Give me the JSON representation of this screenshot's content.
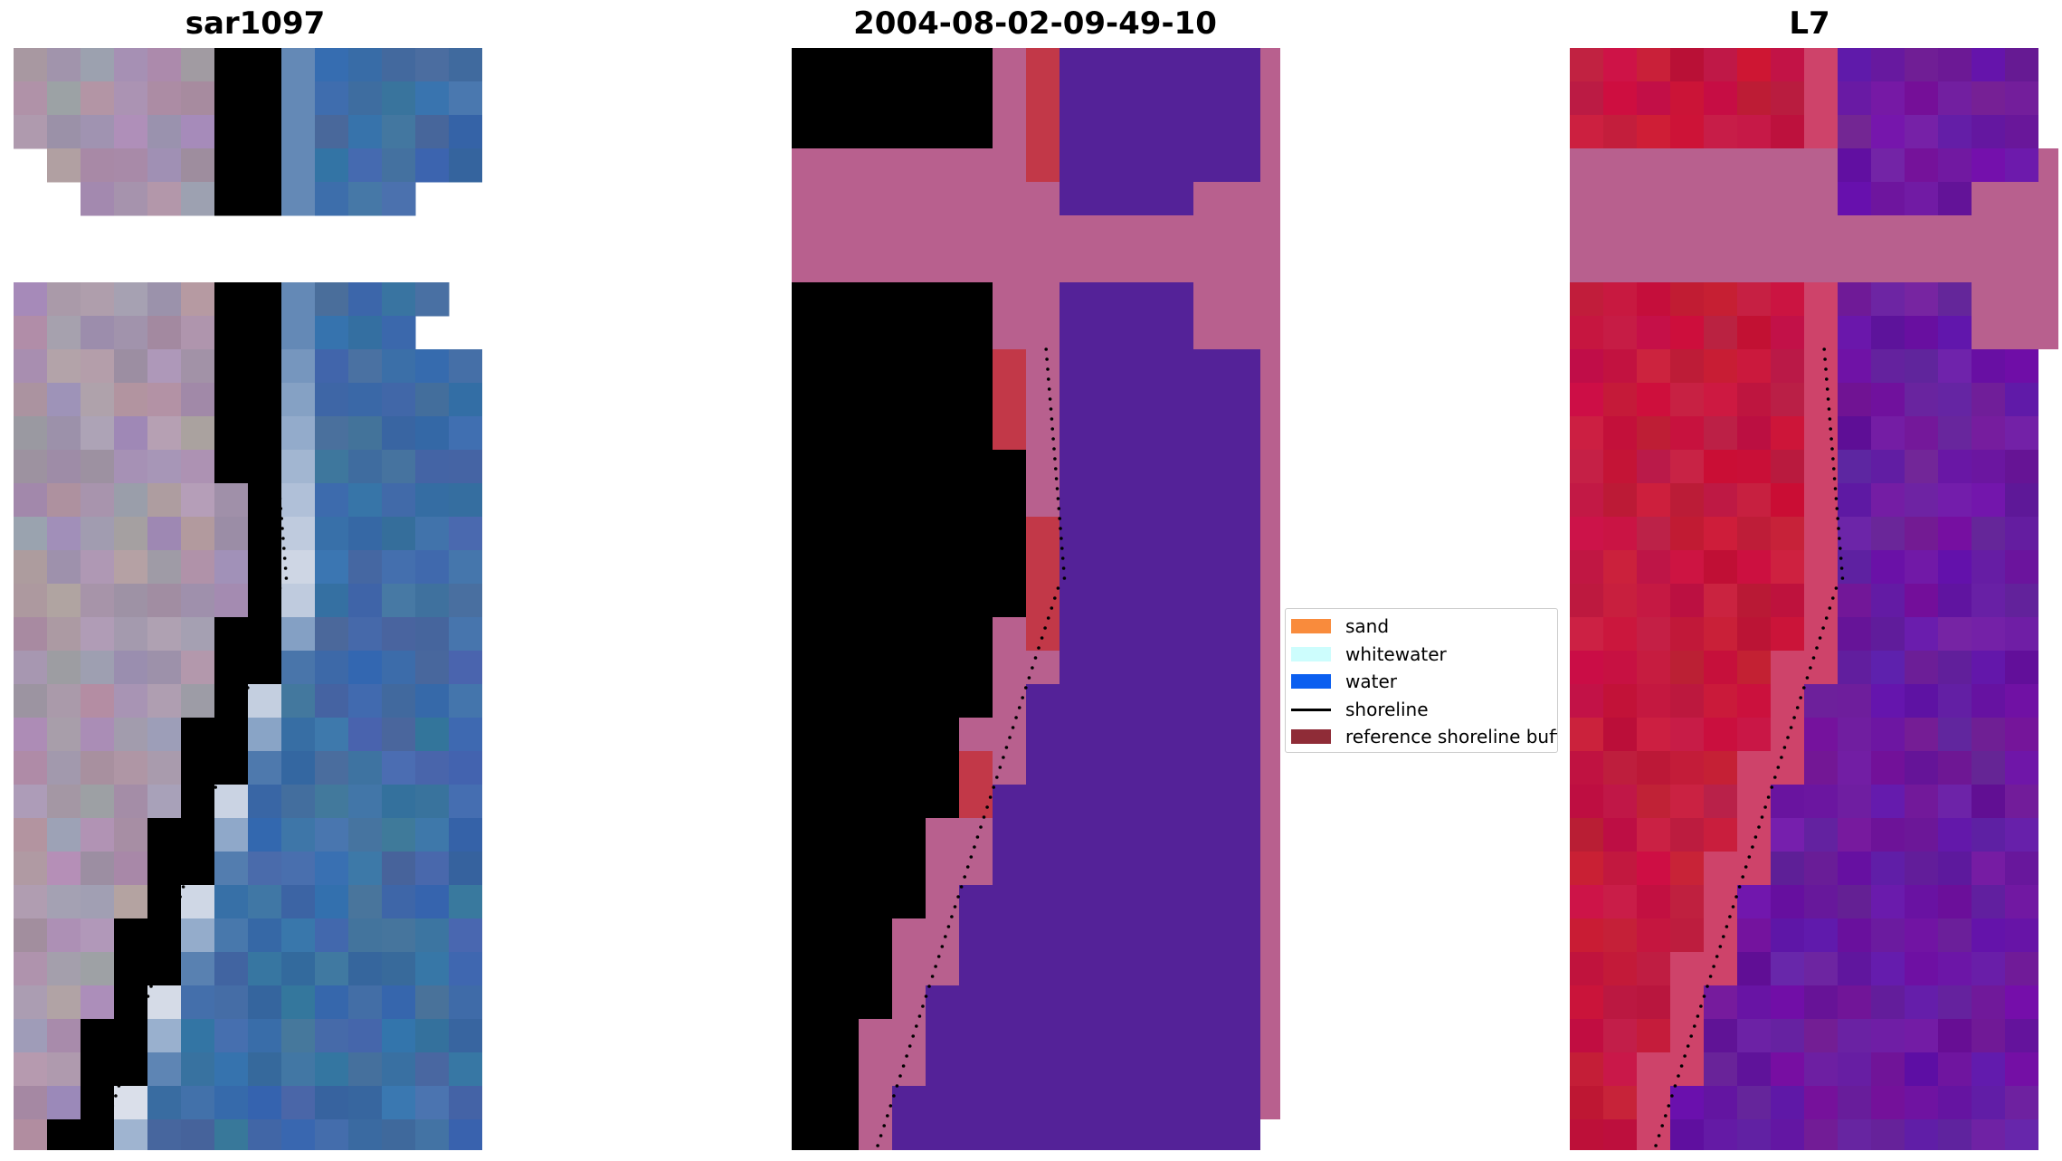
{
  "panels": [
    {
      "title": "sar1097"
    },
    {
      "title": "2004-08-02-09-49-10"
    },
    {
      "title": "L7"
    }
  ],
  "legend": {
    "items": [
      {
        "label": "sand",
        "color": "#f98b3c",
        "kind": "patch"
      },
      {
        "label": "whitewater",
        "color": "#cdfdfd",
        "kind": "patch"
      },
      {
        "label": "water",
        "color": "#0b5ff0",
        "kind": "patch"
      },
      {
        "label": "shoreline",
        "color": "#000000",
        "kind": "line"
      },
      {
        "label": "reference shoreline buffer",
        "color": "#8f2c37",
        "kind": "patch"
      }
    ]
  },
  "colors": {
    "sand_overlay": "#b8608e",
    "water_overlay": "#542298",
    "buffer_overlay": "#c23848",
    "rgb_water": "#3f6ea6",
    "rgb_whitewater": "#f6f3f6",
    "rgb_land": "#a896ac",
    "l7_land": "#c4183e",
    "l7_water": "#6a1aa0"
  }
}
